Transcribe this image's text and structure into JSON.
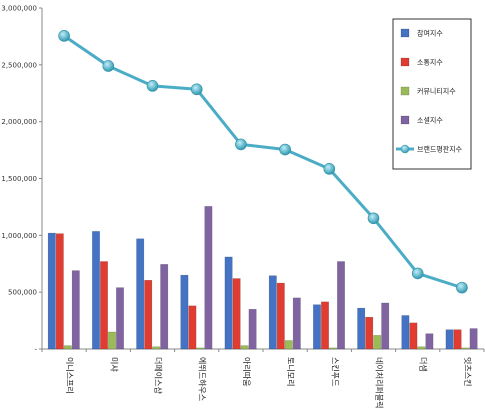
{
  "chart_data": {
    "type": "bar",
    "categories": [
      "이니스프리",
      "미샤",
      "더페이스샵",
      "에뛰드하우스",
      "아리따움",
      "토니모리",
      "스킨푸드",
      "네이처리퍼블릭",
      "더샘",
      "잇츠스킨"
    ],
    "series": [
      {
        "name": "참여지수",
        "type": "bar",
        "color": "#4472C4",
        "values": [
          1020000,
          1035000,
          970000,
          650000,
          810000,
          645000,
          390000,
          360000,
          295000,
          170000
        ]
      },
      {
        "name": "소통지수",
        "type": "bar",
        "color": "#E03C31",
        "values": [
          1015000,
          770000,
          605000,
          380000,
          620000,
          580000,
          415000,
          280000,
          230000,
          170000
        ]
      },
      {
        "name": "커뮤니티지수",
        "type": "bar",
        "color": "#9BBB59",
        "values": [
          30000,
          150000,
          20000,
          10000,
          30000,
          75000,
          10000,
          120000,
          20000,
          10000
        ]
      },
      {
        "name": "소셜지수",
        "type": "bar",
        "color": "#8064A2",
        "values": [
          690000,
          540000,
          745000,
          1255000,
          350000,
          450000,
          770000,
          405000,
          135000,
          180000
        ]
      },
      {
        "name": "브랜드평판지수",
        "type": "line",
        "color": "#4BACC6",
        "values": [
          2755000,
          2490000,
          2315000,
          2285000,
          1800000,
          1755000,
          1585000,
          1150000,
          665000,
          540000
        ]
      }
    ],
    "yticks": [
      "-",
      "500,000",
      "1,000,000",
      "1,500,000",
      "2,000,000",
      "2,500,000",
      "3,000,000"
    ],
    "ylim": [
      0,
      3000000
    ],
    "title": "",
    "xlabel": "",
    "ylabel": "",
    "grid": false,
    "legend": "top-right"
  }
}
